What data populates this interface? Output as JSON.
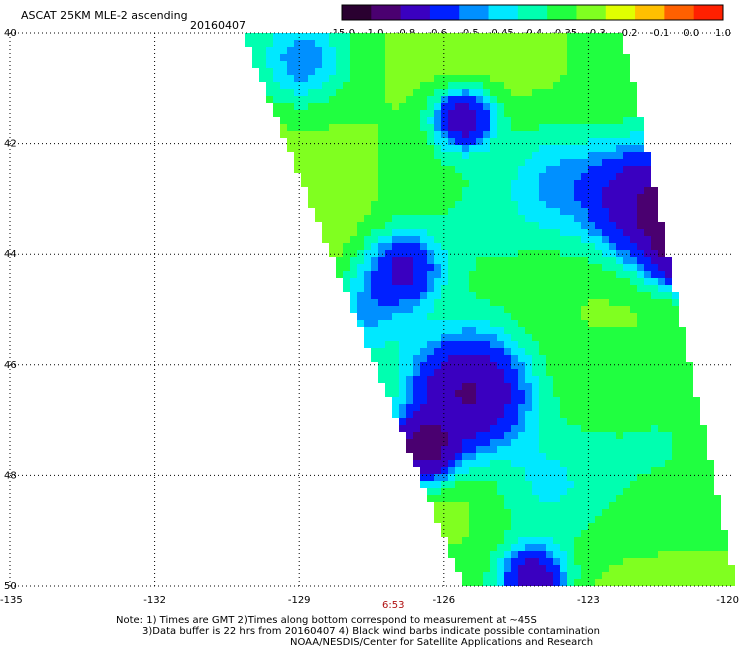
{
  "header": {
    "title": "ASCAT 25KM MLE-2 ascending",
    "date": "20160407"
  },
  "colorbar": {
    "labels": [
      "-15.0",
      "-1.0",
      "-0.8",
      "-0.6",
      "-0.5",
      "-0.45",
      "-0.4",
      "-0.35",
      "-0.3",
      "-0.2",
      "-0.1",
      "0.0",
      "1.0"
    ],
    "colors": [
      "#2a0030",
      "#4a0070",
      "#3a00c0",
      "#0020ff",
      "#0090ff",
      "#00e8ff",
      "#00ffb0",
      "#20ff40",
      "#80ff20",
      "#e0ff00",
      "#ffc000",
      "#ff6000",
      "#ff2000"
    ]
  },
  "map": {
    "lat_labels": [
      "40",
      "42",
      "44",
      "46",
      "48",
      "50"
    ],
    "lon_labels": [
      "-135",
      "-132",
      "-129",
      "-126",
      "-123",
      "-120"
    ],
    "time_label": "6:53"
  },
  "notes": {
    "line1": "Note: 1) Times are GMT 2)Times along bottom correspond to measurement at ~45S",
    "line2": "3)Data buffer is 22 hrs from 20160407 4) Black wind barbs indicate possible contamination",
    "line3": "NOAA/NESDIS/Center for Satellite Applications and Research"
  }
}
